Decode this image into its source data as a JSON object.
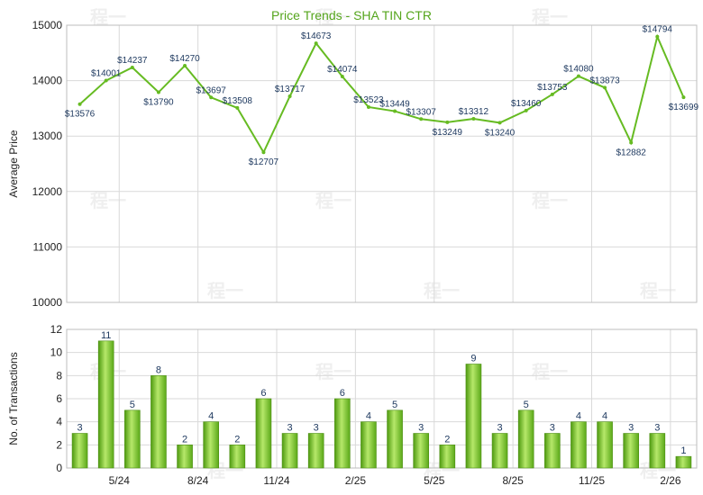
{
  "chart_data": [
    {
      "type": "line",
      "title": "Price Trends - SHA TIN CTR",
      "ylabel": "Average Price",
      "ylim": [
        10000,
        15000
      ],
      "yticks": [
        10000,
        11000,
        12000,
        13000,
        14000,
        15000
      ],
      "grid": true,
      "series": [
        {
          "values": [
            13576,
            14001,
            14237,
            13790,
            14270,
            13697,
            13508,
            12707,
            13717,
            14673,
            14074,
            13523,
            13449,
            13307,
            13249,
            13312,
            13240,
            13460,
            13753,
            14080,
            13873,
            12882,
            14794,
            13699
          ],
          "labels": [
            "$13576",
            "$14001",
            "$14237",
            "$13790",
            "$14270",
            "$13697",
            "$13508",
            "$12707",
            "$13717",
            "$14673",
            "$14074",
            "$13523",
            "$13449",
            "$13307",
            "$13249",
            "$13312",
            "$13240",
            "$13460",
            "$13753",
            "$14080",
            "$13873",
            "$12882",
            "$14794",
            "$13699"
          ],
          "color": "#66bb22"
        }
      ]
    },
    {
      "type": "bar",
      "ylabel": "No. of Transactions",
      "ylim": [
        0,
        12
      ],
      "yticks": [
        0,
        2,
        4,
        6,
        8,
        10,
        12
      ],
      "grid": true,
      "x_ticklabels": [
        "5/24",
        "8/24",
        "11/24",
        "2/25",
        "5/25",
        "8/25",
        "11/25",
        "2/26"
      ],
      "x_tick_positions": [
        2,
        5,
        8,
        11,
        14,
        17,
        20,
        23
      ],
      "series": [
        {
          "values": [
            3,
            11,
            5,
            8,
            2,
            4,
            2,
            6,
            3,
            3,
            6,
            4,
            5,
            3,
            2,
            9,
            3,
            5,
            3,
            4,
            4,
            3,
            3,
            1
          ],
          "color": "#77c02a"
        }
      ]
    }
  ],
  "watermark": "程一"
}
